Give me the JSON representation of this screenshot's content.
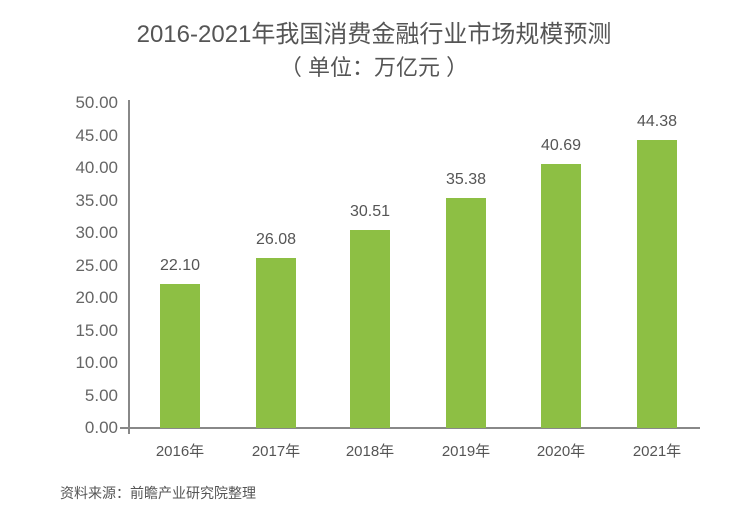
{
  "title": "2016-2021年我国消费金融行业市场规模预测",
  "subtitle": "（ 单位：万亿元 ）",
  "source": "资料来源：前瞻产业研究院整理",
  "colors": {
    "bar": "#8dbf44",
    "axis": "#888888",
    "text": "#555555"
  },
  "y_ticks": [
    "50.00",
    "45.00",
    "40.00",
    "35.00",
    "30.00",
    "25.00",
    "20.00",
    "15.00",
    "10.00",
    "5.00",
    "0.00"
  ],
  "bars": [
    {
      "category": "2016年",
      "value": 22.1,
      "label": "22.10"
    },
    {
      "category": "2017年",
      "value": 26.08,
      "label": "26.08"
    },
    {
      "category": "2018年",
      "value": 30.51,
      "label": "30.51"
    },
    {
      "category": "2019年",
      "value": 35.38,
      "label": "35.38"
    },
    {
      "category": "2020年",
      "value": 40.69,
      "label": "40.69"
    },
    {
      "category": "2021年",
      "value": 44.38,
      "label": "44.38"
    }
  ],
  "chart_data": {
    "type": "bar",
    "title": "2016-2021年我国消费金融行业市场规模预测",
    "subtitle": "（ 单位：万亿元 ）",
    "categories": [
      "2016年",
      "2017年",
      "2018年",
      "2019年",
      "2020年",
      "2021年"
    ],
    "values": [
      22.1,
      26.08,
      30.51,
      35.38,
      40.69,
      44.38
    ],
    "xlabel": "",
    "ylabel": "",
    "ylim": [
      0,
      50
    ],
    "yticks": [
      0,
      5,
      10,
      15,
      20,
      25,
      30,
      35,
      40,
      45,
      50
    ],
    "grid": false,
    "legend": null,
    "data_labels": true,
    "source": "资料来源：前瞻产业研究院整理"
  }
}
